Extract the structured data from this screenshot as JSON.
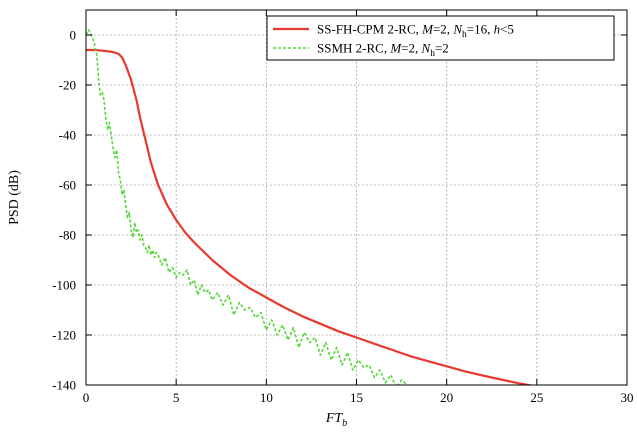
{
  "chart_data": {
    "type": "line",
    "xlabel_main": "FT",
    "xlabel_sub": "b",
    "ylabel": "PSD (dB)",
    "xlim": [
      0,
      30
    ],
    "ylim": [
      -140,
      10
    ],
    "xticks": [
      0,
      5,
      10,
      15,
      20,
      25,
      30
    ],
    "yticks": [
      0,
      -20,
      -40,
      -60,
      -80,
      -100,
      -120,
      -140
    ],
    "grid": true,
    "legend_position": "top-right",
    "series": [
      {
        "name": "SS-FH-CPM 2-RC, M=2, Nh=16, h<5",
        "legend_parts": [
          "SS-FH-CPM 2-RC, ",
          "M",
          "=2, ",
          "N",
          "h",
          "=16, ",
          "h",
          "<5"
        ],
        "color": "#e8392e",
        "dashed": false,
        "x": [
          0,
          0.5,
          1.0,
          1.5,
          1.8,
          2.0,
          2.2,
          2.5,
          2.8,
          3.0,
          3.3,
          3.6,
          4.0,
          4.5,
          5.0,
          5.5,
          6.0,
          7.0,
          8.0,
          9.0,
          10.0,
          11.0,
          12.0,
          13.0,
          14.0,
          15.0,
          16.0,
          17.0,
          18.0,
          19.0,
          20.0,
          21.0,
          22.0,
          23.0,
          24.0,
          25.0,
          25.6
        ],
        "y": [
          -6,
          -6,
          -6.3,
          -6.8,
          -7.5,
          -9,
          -12,
          -18,
          -26,
          -33,
          -42,
          -51,
          -60,
          -68,
          -74,
          -79,
          -83,
          -90,
          -96,
          -101,
          -105,
          -109,
          -112.5,
          -115.5,
          -118.5,
          -121,
          -123.5,
          -126,
          -128.5,
          -130.5,
          -132.5,
          -134.5,
          -136.2,
          -137.8,
          -139.3,
          -140.6,
          -141.3
        ]
      },
      {
        "name": "SSMH 2-RC, M=2, Nh=2",
        "legend_parts": [
          "SSMH 2-RC, ",
          "M",
          "=2, ",
          "N",
          "h",
          "=2"
        ],
        "color": "#55d63a",
        "dashed": true,
        "x": [
          0,
          0.15,
          0.3,
          0.45,
          0.6,
          0.7,
          0.8,
          0.9,
          1.0,
          1.1,
          1.2,
          1.3,
          1.4,
          1.5,
          1.6,
          1.7,
          1.8,
          1.9,
          2.0,
          2.1,
          2.2,
          2.3,
          2.4,
          2.5,
          2.6,
          2.7,
          2.8,
          2.9,
          3.0,
          3.1,
          3.2,
          3.3,
          3.4,
          3.5,
          3.6,
          3.7,
          3.8,
          3.9,
          4.0,
          4.2,
          4.4,
          4.6,
          4.8,
          5.0,
          5.2,
          5.4,
          5.6,
          5.8,
          6.0,
          6.2,
          6.4,
          6.6,
          6.8,
          7.0,
          7.3,
          7.6,
          7.9,
          8.2,
          8.5,
          8.8,
          9.1,
          9.4,
          9.7,
          10.0,
          10.3,
          10.6,
          10.9,
          11.2,
          11.5,
          11.8,
          12.1,
          12.4,
          12.7,
          13.0,
          13.3,
          13.6,
          13.9,
          14.2,
          14.5,
          14.8,
          15.1,
          15.4,
          15.7,
          16.0,
          16.3,
          16.6,
          16.9,
          17.2,
          17.5,
          17.8,
          18.0
        ],
        "y": [
          0,
          2,
          0,
          -3,
          -8,
          -18,
          -24,
          -23,
          -26,
          -33,
          -38,
          -35,
          -40,
          -45,
          -49,
          -46,
          -55,
          -58,
          -64,
          -62,
          -68,
          -73,
          -71,
          -78,
          -81,
          -75,
          -79,
          -78,
          -82,
          -80,
          -84,
          -85,
          -87,
          -84,
          -88,
          -86,
          -89,
          -87,
          -88,
          -92,
          -89,
          -95,
          -93,
          -97,
          -95,
          -96,
          -94,
          -100,
          -98,
          -104,
          -100,
          -103,
          -102,
          -106,
          -103,
          -108,
          -104,
          -112,
          -107,
          -110,
          -109,
          -113,
          -111,
          -118,
          -114,
          -120,
          -116,
          -122,
          -117,
          -125,
          -119,
          -123,
          -121,
          -128,
          -123,
          -130,
          -125,
          -132,
          -127,
          -134,
          -130,
          -133,
          -132,
          -137,
          -134,
          -139,
          -136,
          -141,
          -138,
          -140,
          -141
        ]
      }
    ]
  }
}
